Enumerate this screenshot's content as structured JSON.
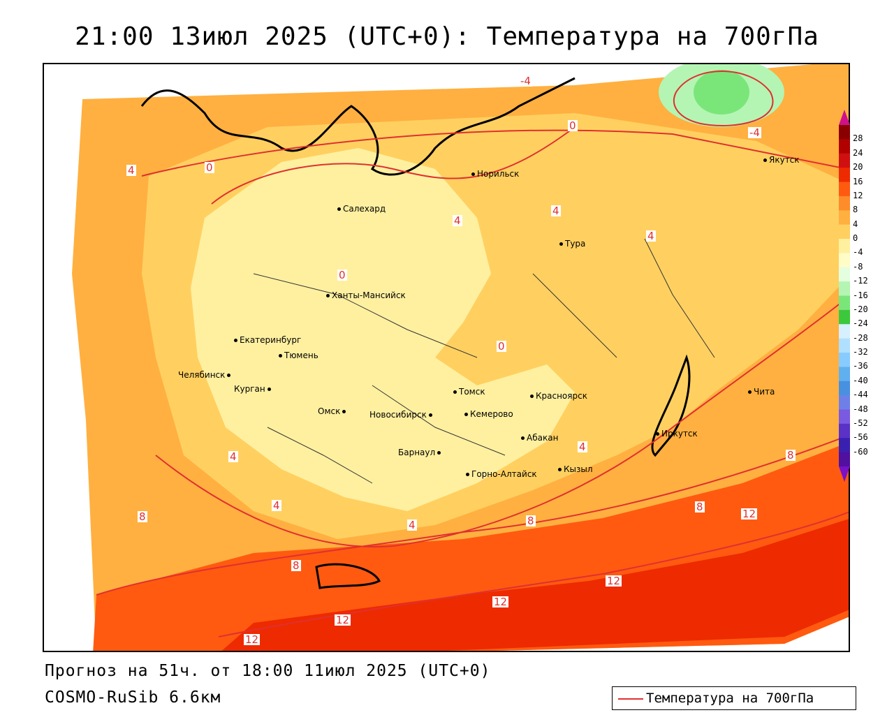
{
  "title": "21:00 13июл 2025 (UTC+0): Температура на 700гПа",
  "forecast_line": "Прогноз на 51ч. от 18:00 11июл 2025 (UTC+0)",
  "model": "COSMO-RuSib 6.6км",
  "legend": {
    "label": "Температура на 700гПа",
    "line_color": "#e03030"
  },
  "color_scale": {
    "ticks": [
      "28",
      "24",
      "20",
      "16",
      "12",
      "8",
      "4",
      "0",
      "-4",
      "-8",
      "-12",
      "-16",
      "-20",
      "-24",
      "-28",
      "-32",
      "-36",
      "-40",
      "-44",
      "-48",
      "-52",
      "-56",
      "-60"
    ],
    "colors": [
      "#8a0000",
      "#b00000",
      "#d01010",
      "#ee2a00",
      "#ff5a10",
      "#ff8c2a",
      "#ffb040",
      "#ffd060",
      "#fff0a0",
      "#fffcc8",
      "#e4ffe0",
      "#b4f5b4",
      "#7ae67a",
      "#3cc83c",
      "#d7f0ff",
      "#b0e0ff",
      "#88ccff",
      "#60b0f0",
      "#4890e0",
      "#6e80e8",
      "#7a5ae0",
      "#5a32c8",
      "#3a20b0",
      "#5010a0"
    ]
  },
  "cities": [
    {
      "name": "Норильск"
    },
    {
      "name": "Якутск"
    },
    {
      "name": "Салехард"
    },
    {
      "name": "Тура"
    },
    {
      "name": "Ханты-Мансийск"
    },
    {
      "name": "Екатеринбург"
    },
    {
      "name": "Тюмень"
    },
    {
      "name": "Челябинск"
    },
    {
      "name": "Курган"
    },
    {
      "name": "Омск"
    },
    {
      "name": "Томск"
    },
    {
      "name": "Красноярск"
    },
    {
      "name": "Новосибирск"
    },
    {
      "name": "Кемерово"
    },
    {
      "name": "Абакан"
    },
    {
      "name": "Барнаул"
    },
    {
      "name": "Иркутск"
    },
    {
      "name": "Чита"
    },
    {
      "name": "Кызыл"
    },
    {
      "name": "Горно-Алтайск"
    }
  ],
  "contour_labels": [
    "-4",
    "0",
    "4",
    "8",
    "12"
  ]
}
